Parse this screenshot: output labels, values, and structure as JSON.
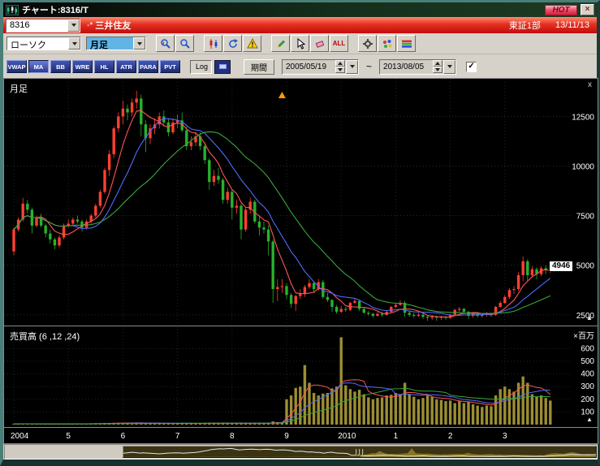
{
  "window": {
    "title": "チャート:8316/T",
    "hot_label": "HOT",
    "close_glyph": "×"
  },
  "symbol_bar": {
    "code": "8316",
    "marker": "-*",
    "name": "三井住友",
    "exchange": "東証1部",
    "date": "13/11/13"
  },
  "toolbar": {
    "chart_type": "ローソク",
    "timeframe": "月足",
    "icon_groups": [
      [
        {
          "name": "zoom-area-button",
          "icon": "magnifier-chart"
        },
        {
          "name": "zoom-button",
          "icon": "magnifier"
        }
      ],
      [
        {
          "name": "candle-style-button",
          "icon": "candles"
        },
        {
          "name": "refresh-button",
          "icon": "refresh"
        },
        {
          "name": "alert-button",
          "icon": "warning"
        }
      ],
      [
        {
          "name": "draw-pencil-button",
          "icon": "pencil"
        },
        {
          "name": "select-cursor-button",
          "icon": "cursor"
        },
        {
          "name": "erase-button",
          "icon": "eraser"
        },
        {
          "name": "show-all-button",
          "icon": "text",
          "label": "ALL"
        }
      ],
      [
        {
          "name": "settings-button",
          "icon": "gear"
        },
        {
          "name": "palette-button",
          "icon": "palette"
        },
        {
          "name": "colors-button",
          "icon": "rainbow"
        }
      ]
    ]
  },
  "indicator_bar": {
    "buttons": [
      {
        "label": "VWAP",
        "active": false
      },
      {
        "label": "MA",
        "active": true
      },
      {
        "label": "BB",
        "active": false
      },
      {
        "label": "WRE",
        "active": false
      },
      {
        "label": "HL",
        "active": false
      },
      {
        "label": "ATR",
        "active": false
      },
      {
        "label": "PARA",
        "active": false
      },
      {
        "label": "PVT",
        "active": false
      }
    ],
    "log_label": "Log",
    "period_label": "期間",
    "date_from": "2005/05/19",
    "date_to": "2013/08/05",
    "range_separator": "~",
    "checkbox_checked": true,
    "check_glyph": "✓"
  },
  "chart_data": {
    "type": "candlestick",
    "title": "8316 三井住友 月足",
    "start_month": "2004-01",
    "last_price": 4946,
    "ma_periods": [
      6,
      12,
      24
    ],
    "panes": {
      "price_title": "月足",
      "volume_title": "売買高 (6 ,12 ,24)",
      "close_glyph": "x",
      "scroll_glyph": "▲"
    },
    "price_axis": {
      "ticks": [
        12500,
        10000,
        7500,
        5000,
        2500
      ],
      "max": 14400,
      "min": 2000
    },
    "volume_axis": {
      "ticks": [
        600,
        500,
        400,
        300,
        200,
        100
      ],
      "unit": "×百万",
      "max": 780
    },
    "x_axis": {
      "labels": [
        {
          "text": "2004",
          "month": 0
        },
        {
          "text": "5",
          "month": 12
        },
        {
          "text": "6",
          "month": 24
        },
        {
          "text": "7",
          "month": 36
        },
        {
          "text": "8",
          "month": 48
        },
        {
          "text": "9",
          "month": 60
        },
        {
          "text": "2010",
          "month": 72
        },
        {
          "text": "1",
          "month": 84
        },
        {
          "text": "2",
          "month": 96
        },
        {
          "text": "3",
          "month": 108
        }
      ]
    },
    "marker": {
      "month_index": 59,
      "shape": "up-triangle",
      "color": "#ff9a00"
    },
    "colors": {
      "up": "#ff4032",
      "down": "#27b22c",
      "ma": [
        "#ff5555",
        "#4f6bff",
        "#3aa83a"
      ],
      "volume_bar": "#9c8e33",
      "background": "#000000",
      "grid": "#2b2b2b",
      "axis_text": "#ffffff",
      "banner_red": "#c00d0d",
      "hot_pink": "#f0556e"
    },
    "candles": [
      [
        5700,
        6900,
        5500,
        6800
      ],
      [
        6800,
        7400,
        6700,
        7300
      ],
      [
        7300,
        8400,
        7200,
        8100
      ],
      [
        8100,
        8300,
        7600,
        7800
      ],
      [
        7800,
        7900,
        6600,
        7000
      ],
      [
        7000,
        7500,
        6900,
        7400
      ],
      [
        7400,
        7600,
        6900,
        7000
      ],
      [
        7000,
        7100,
        6400,
        6600
      ],
      [
        6600,
        6800,
        6100,
        6300
      ],
      [
        6300,
        6400,
        5800,
        6000
      ],
      [
        6000,
        6500,
        5900,
        6400
      ],
      [
        6400,
        7100,
        6300,
        7000
      ],
      [
        7000,
        7300,
        6900,
        7100
      ],
      [
        7100,
        7400,
        7000,
        7300
      ],
      [
        7300,
        7500,
        7100,
        7200
      ],
      [
        7200,
        7300,
        6700,
        6900
      ],
      [
        6900,
        7300,
        6800,
        7200
      ],
      [
        7200,
        7600,
        7100,
        7500
      ],
      [
        7500,
        8100,
        7400,
        8000
      ],
      [
        8000,
        8800,
        7900,
        8700
      ],
      [
        8700,
        9900,
        8600,
        9800
      ],
      [
        9800,
        10800,
        9500,
        10600
      ],
      [
        10600,
        12000,
        10400,
        11900
      ],
      [
        11900,
        12700,
        11700,
        12500
      ],
      [
        12500,
        13300,
        12100,
        12900
      ],
      [
        12900,
        13100,
        12300,
        12700
      ],
      [
        12700,
        13400,
        12500,
        13200
      ],
      [
        13200,
        13800,
        12900,
        13400
      ],
      [
        13400,
        13600,
        11500,
        12100
      ],
      [
        12100,
        12300,
        10700,
        11400
      ],
      [
        11400,
        12100,
        11100,
        11900
      ],
      [
        11900,
        12400,
        11600,
        12100
      ],
      [
        12100,
        12700,
        11900,
        12500
      ],
      [
        12500,
        12800,
        12000,
        12200
      ],
      [
        12200,
        12400,
        11500,
        11700
      ],
      [
        11700,
        12400,
        11600,
        12200
      ],
      [
        12200,
        12600,
        11900,
        12300
      ],
      [
        12300,
        12700,
        11700,
        11800
      ],
      [
        11800,
        12000,
        10800,
        11000
      ],
      [
        11000,
        11500,
        10800,
        11200
      ],
      [
        11200,
        11700,
        11000,
        11500
      ],
      [
        11500,
        11700,
        10800,
        11000
      ],
      [
        11000,
        11200,
        10100,
        10300
      ],
      [
        10300,
        10400,
        8800,
        9200
      ],
      [
        9200,
        9800,
        9000,
        9500
      ],
      [
        9500,
        9900,
        9100,
        9300
      ],
      [
        9300,
        9400,
        8100,
        8300
      ],
      [
        8300,
        8900,
        8100,
        8700
      ],
      [
        8700,
        8800,
        7300,
        7900
      ],
      [
        7900,
        8300,
        7600,
        8000
      ],
      [
        8000,
        8100,
        6300,
        6800
      ],
      [
        6800,
        7900,
        6700,
        7800
      ],
      [
        7800,
        8400,
        7600,
        8200
      ],
      [
        8200,
        8300,
        7100,
        7200
      ],
      [
        7200,
        7500,
        6500,
        6900
      ],
      [
        6900,
        7200,
        6600,
        6800
      ],
      [
        6800,
        7000,
        5500,
        6200
      ],
      [
        6200,
        6300,
        3100,
        3800
      ],
      [
        3800,
        4300,
        3200,
        3900
      ],
      [
        3900,
        4300,
        3600,
        3950
      ],
      [
        3950,
        4100,
        3300,
        3500
      ],
      [
        3500,
        3600,
        2850,
        3050
      ],
      [
        3050,
        3500,
        2700,
        3450
      ],
      [
        3450,
        3800,
        3300,
        3550
      ],
      [
        3550,
        4000,
        3400,
        3900
      ],
      [
        3900,
        4300,
        3800,
        4100
      ],
      [
        4100,
        4200,
        3600,
        3800
      ],
      [
        3800,
        4300,
        3700,
        4150
      ],
      [
        4150,
        4250,
        3300,
        3400
      ],
      [
        3400,
        3600,
        3150,
        3250
      ],
      [
        3250,
        3300,
        2650,
        2900
      ],
      [
        2900,
        3000,
        2550,
        2650
      ],
      [
        2650,
        2950,
        2600,
        2800
      ],
      [
        2800,
        2900,
        2650,
        2750
      ],
      [
        2750,
        3150,
        2700,
        3100
      ],
      [
        3100,
        3350,
        3050,
        3200
      ],
      [
        3200,
        3250,
        2700,
        2800
      ],
      [
        2800,
        2900,
        2550,
        2600
      ],
      [
        2600,
        2700,
        2450,
        2550
      ],
      [
        2550,
        2600,
        2350,
        2450
      ],
      [
        2450,
        2650,
        2400,
        2550
      ],
      [
        2550,
        2650,
        2400,
        2500
      ],
      [
        2500,
        2700,
        2450,
        2650
      ],
      [
        2650,
        2950,
        2600,
        2900
      ],
      [
        2900,
        3100,
        2850,
        3000
      ],
      [
        3000,
        3250,
        2950,
        3100
      ],
      [
        3100,
        3200,
        2400,
        2600
      ],
      [
        2600,
        2700,
        2400,
        2500
      ],
      [
        2500,
        2600,
        2350,
        2450
      ],
      [
        2450,
        2600,
        2400,
        2500
      ],
      [
        2500,
        2600,
        2300,
        2400
      ],
      [
        2400,
        2450,
        2200,
        2350
      ],
      [
        2350,
        2500,
        2250,
        2400
      ],
      [
        2400,
        2450,
        2200,
        2350
      ],
      [
        2350,
        2450,
        2250,
        2400
      ],
      [
        2400,
        2450,
        2250,
        2350
      ],
      [
        2350,
        2550,
        2300,
        2500
      ],
      [
        2500,
        2800,
        2450,
        2750
      ],
      [
        2750,
        2900,
        2650,
        2800
      ],
      [
        2800,
        2850,
        2550,
        2650
      ],
      [
        2650,
        2700,
        2300,
        2450
      ],
      [
        2450,
        2600,
        2350,
        2550
      ],
      [
        2550,
        2600,
        2350,
        2450
      ],
      [
        2450,
        2550,
        2350,
        2500
      ],
      [
        2500,
        2650,
        2400,
        2550
      ],
      [
        2550,
        2600,
        2400,
        2500
      ],
      [
        2500,
        2950,
        2450,
        2900
      ],
      [
        2900,
        3200,
        2850,
        3100
      ],
      [
        3100,
        3500,
        3050,
        3400
      ],
      [
        3400,
        3850,
        3300,
        3750
      ],
      [
        3750,
        3950,
        3550,
        3800
      ],
      [
        3800,
        4650,
        3700,
        4500
      ],
      [
        4500,
        5450,
        4200,
        5200
      ],
      [
        5200,
        5300,
        4200,
        4500
      ],
      [
        4500,
        4950,
        4400,
        4800
      ],
      [
        4800,
        4900,
        4300,
        4550
      ],
      [
        4550,
        4950,
        4450,
        4850
      ],
      [
        4850,
        5000,
        4550,
        4750
      ],
      [
        4750,
        5000,
        4600,
        4946
      ]
    ],
    "volumes": [
      6,
      5,
      8,
      7,
      5,
      5,
      4,
      5,
      5,
      5,
      5,
      6,
      6,
      6,
      7,
      7,
      8,
      8,
      9,
      10,
      12,
      12,
      13,
      14,
      14,
      12,
      13,
      14,
      13,
      11,
      10,
      10,
      9,
      9,
      10,
      10,
      10,
      9,
      11,
      10,
      9,
      10,
      11,
      13,
      11,
      11,
      12,
      11,
      12,
      11,
      14,
      12,
      10,
      11,
      12,
      11,
      16,
      25,
      20,
      16,
      200,
      230,
      290,
      300,
      470,
      330,
      250,
      230,
      245,
      250,
      285,
      300,
      690,
      310,
      280,
      260,
      275,
      240,
      215,
      200,
      210,
      215,
      230,
      235,
      250,
      240,
      330,
      240,
      220,
      200,
      210,
      230,
      220,
      200,
      195,
      185,
      190,
      170,
      185,
      170,
      180,
      160,
      150,
      140,
      150,
      145,
      230,
      280,
      300,
      280,
      260,
      330,
      380,
      330,
      240,
      220,
      230,
      210,
      190
    ]
  }
}
